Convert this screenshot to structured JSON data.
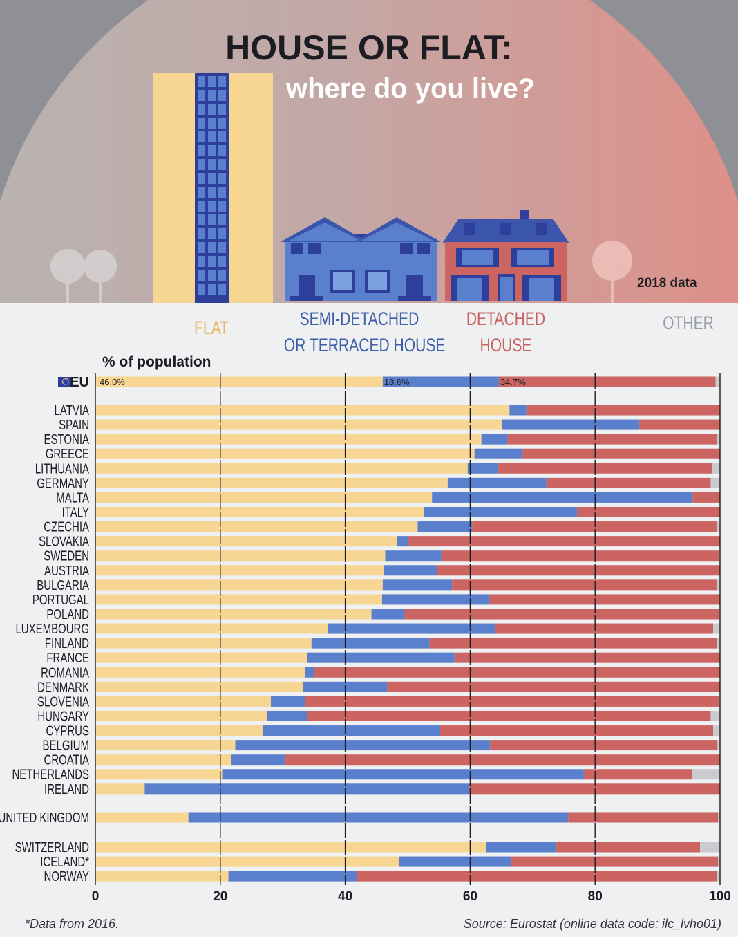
{
  "header": {
    "title": "HOUSE OR FLAT:",
    "subtitle": "where do you live?",
    "data_year": "2018 data"
  },
  "categories": {
    "flat": "FLAT",
    "semi_line1": "SEMI-DETACHED",
    "semi_line2": "OR TERRACED HOUSE",
    "detached_line1": "DETACHED",
    "detached_line2": "HOUSE",
    "other": "OTHER"
  },
  "colors": {
    "flat": "#f7d694",
    "semi": "#5a7fcc",
    "detached": "#cc6462",
    "other": "#c9cbcf",
    "flat_label": "#e8b860",
    "semi_label": "#3e5fa8",
    "detached_label": "#c8625f",
    "other_label": "#9a9da3"
  },
  "chart_data": {
    "type": "bar",
    "orientation": "horizontal",
    "stacked": true,
    "unit_label": "% of population",
    "xlim": [
      0,
      100
    ],
    "x_ticks": [
      0,
      20,
      40,
      60,
      80,
      100
    ],
    "series_names": [
      "Flat",
      "Semi-detached or terraced house",
      "Detached house",
      "Other"
    ],
    "eu": {
      "label": "EU",
      "flat": 46.0,
      "semi": 18.6,
      "detached": 34.7,
      "other": 0.7,
      "flat_label": "46.0%",
      "semi_label": "18.6%",
      "detached_label": "34.7%"
    },
    "groups": [
      [
        {
          "label": "LATVIA",
          "flat": 66.3,
          "semi": 2.7,
          "detached": 31.0,
          "other": 0.0
        },
        {
          "label": "SPAIN",
          "flat": 65.1,
          "semi": 22.0,
          "detached": 12.9,
          "other": 0.0
        },
        {
          "label": "ESTONIA",
          "flat": 61.8,
          "semi": 4.2,
          "detached": 33.5,
          "other": 0.5
        },
        {
          "label": "GREECE",
          "flat": 60.7,
          "semi": 7.7,
          "detached": 31.6,
          "other": 0.0
        },
        {
          "label": "LITHUANIA",
          "flat": 59.6,
          "semi": 4.9,
          "detached": 34.3,
          "other": 1.2
        },
        {
          "label": "GERMANY",
          "flat": 56.4,
          "semi": 15.8,
          "detached": 26.3,
          "other": 1.5
        },
        {
          "label": "MALTA",
          "flat": 53.9,
          "semi": 41.7,
          "detached": 4.4,
          "other": 0.0
        },
        {
          "label": "ITALY",
          "flat": 52.6,
          "semi": 24.5,
          "detached": 22.9,
          "other": 0.0
        },
        {
          "label": "CZECHIA",
          "flat": 51.6,
          "semi": 8.7,
          "detached": 39.2,
          "other": 0.5
        },
        {
          "label": "SLOVAKIA",
          "flat": 48.3,
          "semi": 1.7,
          "detached": 50.0,
          "other": 0.0
        },
        {
          "label": "SWEDEN",
          "flat": 46.4,
          "semi": 9.0,
          "detached": 44.4,
          "other": 0.2
        },
        {
          "label": "AUSTRIA",
          "flat": 46.2,
          "semi": 8.5,
          "detached": 45.3,
          "other": 0.0
        },
        {
          "label": "BULGARIA",
          "flat": 46.0,
          "semi": 11.1,
          "detached": 42.4,
          "other": 0.5
        },
        {
          "label": "PORTUGAL",
          "flat": 45.9,
          "semi": 17.2,
          "detached": 36.9,
          "other": 0.0
        },
        {
          "label": "POLAND",
          "flat": 44.2,
          "semi": 5.3,
          "detached": 50.3,
          "other": 0.2
        },
        {
          "label": "LUXEMBOURG",
          "flat": 37.2,
          "semi": 26.8,
          "detached": 34.9,
          "other": 1.1
        },
        {
          "label": "FINLAND",
          "flat": 34.6,
          "semi": 18.9,
          "detached": 46.0,
          "other": 0.5
        },
        {
          "label": "FRANCE",
          "flat": 33.9,
          "semi": 23.6,
          "detached": 42.5,
          "other": 0.0
        },
        {
          "label": "ROMANIA",
          "flat": 33.6,
          "semi": 1.4,
          "detached": 65.0,
          "other": 0.0
        },
        {
          "label": "DENMARK",
          "flat": 33.2,
          "semi": 13.5,
          "detached": 53.3,
          "other": 0.0
        },
        {
          "label": "SLOVENIA",
          "flat": 28.1,
          "semi": 5.5,
          "detached": 66.3,
          "other": 0.1
        },
        {
          "label": "HUNGARY",
          "flat": 27.5,
          "semi": 6.4,
          "detached": 64.6,
          "other": 1.5
        },
        {
          "label": "CYPRUS",
          "flat": 26.8,
          "semi": 28.4,
          "detached": 43.7,
          "other": 1.1
        },
        {
          "label": "BELGIUM",
          "flat": 22.4,
          "semi": 40.8,
          "detached": 36.4,
          "other": 0.4
        },
        {
          "label": "CROATIA",
          "flat": 21.7,
          "semi": 8.6,
          "detached": 69.7,
          "other": 0.0
        },
        {
          "label": "NETHERLANDS",
          "flat": 20.3,
          "semi": 57.9,
          "detached": 17.4,
          "other": 4.4
        },
        {
          "label": "IRELAND",
          "flat": 7.9,
          "semi": 51.9,
          "detached": 40.2,
          "other": 0.0
        }
      ],
      [
        {
          "label": "UNITED KINGDOM",
          "flat": 14.9,
          "semi": 60.8,
          "detached": 24.0,
          "other": 0.3
        }
      ],
      [
        {
          "label": "SWITZERLAND",
          "flat": 62.6,
          "semi": 11.2,
          "detached": 23.0,
          "other": 3.2
        },
        {
          "label": "ICELAND*",
          "flat": 48.6,
          "semi": 18.0,
          "detached": 33.1,
          "other": 0.3
        },
        {
          "label": "NORWAY",
          "flat": 21.3,
          "semi": 20.6,
          "detached": 57.6,
          "other": 0.5
        }
      ]
    ]
  },
  "footer": {
    "note": "*Data from 2016.",
    "source": "Source: Eurostat (online data code: ilc_lvho01)"
  }
}
